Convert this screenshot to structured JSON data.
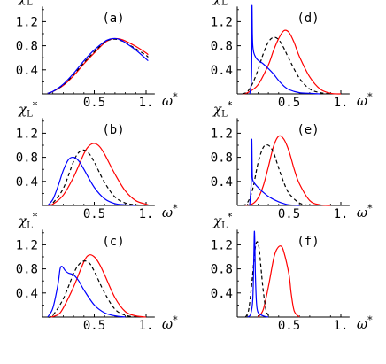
{
  "chart_data": [
    {
      "type": "line",
      "panel_label": "(a)",
      "ylabel": "χ_L*",
      "xlabel": "ω*",
      "xlim": [
        0,
        1.05
      ],
      "ylim": [
        0,
        1.45
      ],
      "xticks": [
        {
          "value": 0.5,
          "label": "0.5"
        },
        {
          "value": 1.0,
          "label": "1."
        }
      ],
      "yticks": [
        {
          "value": 0.4,
          "label": "0.4"
        },
        {
          "value": 0.8,
          "label": "0.8"
        },
        {
          "value": 1.2,
          "label": "1.2"
        }
      ],
      "series": [
        {
          "color": "#ff0000",
          "style": "solid",
          "x": [
            0.05,
            0.1,
            0.2,
            0.3,
            0.4,
            0.5,
            0.6,
            0.65,
            0.7,
            0.75,
            0.8,
            0.9,
            1.0,
            1.02
          ],
          "y": [
            0.01,
            0.04,
            0.14,
            0.3,
            0.5,
            0.68,
            0.85,
            0.9,
            0.92,
            0.91,
            0.88,
            0.79,
            0.68,
            0.65
          ]
        },
        {
          "color": "#000000",
          "style": "dashed",
          "x": [
            0.05,
            0.1,
            0.2,
            0.3,
            0.4,
            0.5,
            0.6,
            0.65,
            0.7,
            0.75,
            0.8,
            0.9,
            1.0,
            1.02
          ],
          "y": [
            0.01,
            0.04,
            0.15,
            0.32,
            0.52,
            0.7,
            0.86,
            0.9,
            0.91,
            0.89,
            0.85,
            0.75,
            0.64,
            0.61
          ]
        },
        {
          "color": "#0000ff",
          "style": "solid",
          "x": [
            0.05,
            0.1,
            0.2,
            0.3,
            0.4,
            0.5,
            0.6,
            0.65,
            0.7,
            0.75,
            0.8,
            0.9,
            1.0,
            1.02
          ],
          "y": [
            0.01,
            0.04,
            0.16,
            0.34,
            0.55,
            0.73,
            0.87,
            0.91,
            0.92,
            0.9,
            0.85,
            0.73,
            0.58,
            0.55
          ]
        }
      ]
    },
    {
      "type": "line",
      "panel_label": "(b)",
      "ylabel": "χ_L*",
      "xlabel": "ω*",
      "xlim": [
        0,
        1.05
      ],
      "ylim": [
        0,
        1.45
      ],
      "xticks": [
        {
          "value": 0.5,
          "label": "0.5"
        },
        {
          "value": 1.0,
          "label": "1."
        }
      ],
      "yticks": [
        {
          "value": 0.4,
          "label": "0.4"
        },
        {
          "value": 0.8,
          "label": "0.8"
        },
        {
          "value": 1.2,
          "label": "1.2"
        }
      ],
      "series": [
        {
          "color": "#ff0000",
          "style": "solid",
          "x": [
            0.05,
            0.1,
            0.2,
            0.3,
            0.4,
            0.45,
            0.5,
            0.55,
            0.6,
            0.7,
            0.8,
            0.9,
            1.0,
            1.02
          ],
          "y": [
            0.0,
            0.02,
            0.17,
            0.47,
            0.86,
            0.99,
            1.03,
            0.98,
            0.85,
            0.52,
            0.24,
            0.08,
            0.02,
            0.01
          ]
        },
        {
          "color": "#000000",
          "style": "dashed",
          "x": [
            0.05,
            0.1,
            0.2,
            0.3,
            0.35,
            0.4,
            0.45,
            0.5,
            0.6,
            0.7,
            0.8,
            0.9,
            1.0
          ],
          "y": [
            0.0,
            0.04,
            0.28,
            0.73,
            0.88,
            0.92,
            0.86,
            0.72,
            0.38,
            0.14,
            0.04,
            0.01,
            0.0
          ]
        },
        {
          "color": "#0000ff",
          "style": "solid",
          "x": [
            0.05,
            0.1,
            0.15,
            0.2,
            0.25,
            0.3,
            0.35,
            0.4,
            0.5,
            0.6,
            0.7,
            0.8,
            0.9
          ],
          "y": [
            0.0,
            0.1,
            0.32,
            0.58,
            0.76,
            0.8,
            0.74,
            0.6,
            0.3,
            0.11,
            0.03,
            0.01,
            0.0
          ]
        }
      ]
    },
    {
      "type": "line",
      "panel_label": "(c)",
      "ylabel": "χ_L*",
      "xlabel": "ω*",
      "xlim": [
        0,
        1.05
      ],
      "ylim": [
        0,
        1.45
      ],
      "xticks": [
        {
          "value": 0.5,
          "label": "0.5"
        },
        {
          "value": 1.0,
          "label": "1."
        }
      ],
      "yticks": [
        {
          "value": 0.4,
          "label": "0.4"
        },
        {
          "value": 0.8,
          "label": "0.8"
        },
        {
          "value": 1.2,
          "label": "1.2"
        }
      ],
      "series": [
        {
          "color": "#ff0000",
          "style": "solid",
          "x": [
            0.08,
            0.15,
            0.2,
            0.3,
            0.4,
            0.45,
            0.5,
            0.55,
            0.6,
            0.7,
            0.8,
            0.9,
            1.0
          ],
          "y": [
            0.0,
            0.04,
            0.15,
            0.5,
            0.92,
            1.03,
            1.0,
            0.88,
            0.7,
            0.32,
            0.09,
            0.02,
            0.0
          ]
        },
        {
          "color": "#000000",
          "style": "dashed",
          "x": [
            0.05,
            0.1,
            0.2,
            0.3,
            0.35,
            0.4,
            0.45,
            0.5,
            0.6,
            0.7,
            0.8,
            0.9
          ],
          "y": [
            0.0,
            0.03,
            0.3,
            0.72,
            0.87,
            0.93,
            0.9,
            0.76,
            0.4,
            0.13,
            0.03,
            0.0
          ]
        },
        {
          "color": "#0000ff",
          "style": "solid",
          "x": [
            0.05,
            0.1,
            0.15,
            0.17,
            0.19,
            0.22,
            0.25,
            0.3,
            0.35,
            0.4,
            0.5,
            0.6,
            0.7,
            0.8
          ],
          "y": [
            0.0,
            0.15,
            0.55,
            0.8,
            0.84,
            0.77,
            0.73,
            0.7,
            0.6,
            0.45,
            0.2,
            0.07,
            0.02,
            0.0
          ]
        }
      ]
    },
    {
      "type": "line",
      "panel_label": "(d)",
      "ylabel": "χ_L*",
      "xlabel": "ω*",
      "xlim": [
        0,
        1.05
      ],
      "ylim": [
        0,
        1.45
      ],
      "xticks": [
        {
          "value": 0.5,
          "label": "0.5"
        },
        {
          "value": 1.0,
          "label": "1."
        }
      ],
      "yticks": [
        {
          "value": 0.4,
          "label": "0.4"
        },
        {
          "value": 0.8,
          "label": "0.8"
        },
        {
          "value": 1.2,
          "label": "1.2"
        }
      ],
      "series": [
        {
          "color": "#ff0000",
          "style": "solid",
          "x": [
            0.05,
            0.1,
            0.2,
            0.3,
            0.35,
            0.4,
            0.45,
            0.5,
            0.55,
            0.6,
            0.7,
            0.8,
            0.9,
            1.0
          ],
          "y": [
            0.0,
            0.02,
            0.15,
            0.48,
            0.72,
            0.92,
            1.05,
            1.02,
            0.85,
            0.62,
            0.28,
            0.08,
            0.01,
            0.0
          ]
        },
        {
          "color": "#000000",
          "style": "dashed",
          "x": [
            0.05,
            0.1,
            0.15,
            0.2,
            0.25,
            0.3,
            0.35,
            0.4,
            0.45,
            0.5,
            0.6,
            0.7,
            0.8,
            0.9
          ],
          "y": [
            0.0,
            0.04,
            0.18,
            0.4,
            0.66,
            0.86,
            0.94,
            0.9,
            0.76,
            0.58,
            0.26,
            0.08,
            0.02,
            0.0
          ]
        },
        {
          "color": "#0000ff",
          "style": "solid",
          "x": [
            0.12,
            0.138,
            0.142,
            0.146,
            0.15,
            0.16,
            0.18,
            0.2,
            0.25,
            0.3,
            0.35,
            0.4,
            0.45,
            0.5,
            0.6,
            0.7,
            0.8
          ],
          "y": [
            0.0,
            0.3,
            1.45,
            1.0,
            0.8,
            0.68,
            0.6,
            0.56,
            0.5,
            0.42,
            0.33,
            0.22,
            0.13,
            0.07,
            0.02,
            0.01,
            0.0
          ]
        }
      ]
    },
    {
      "type": "line",
      "panel_label": "(e)",
      "ylabel": "χ_L*",
      "xlabel": "ω*",
      "xlim": [
        0,
        1.05
      ],
      "ylim": [
        0,
        1.45
      ],
      "xticks": [
        {
          "value": 0.5,
          "label": "0.5"
        },
        {
          "value": 1.0,
          "label": "1."
        }
      ],
      "yticks": [
        {
          "value": 0.4,
          "label": "0.4"
        },
        {
          "value": 0.8,
          "label": "0.8"
        },
        {
          "value": 1.2,
          "label": "1.2"
        }
      ],
      "series": [
        {
          "color": "#ff0000",
          "style": "solid",
          "x": [
            0.08,
            0.15,
            0.2,
            0.25,
            0.3,
            0.35,
            0.4,
            0.45,
            0.5,
            0.55,
            0.6,
            0.7,
            0.8,
            0.9
          ],
          "y": [
            0.0,
            0.03,
            0.12,
            0.32,
            0.64,
            0.98,
            1.15,
            1.1,
            0.9,
            0.6,
            0.36,
            0.08,
            0.01,
            0.0
          ]
        },
        {
          "color": "#000000",
          "style": "dashed",
          "x": [
            0.05,
            0.1,
            0.15,
            0.2,
            0.25,
            0.3,
            0.35,
            0.4,
            0.45,
            0.5,
            0.6,
            0.7
          ],
          "y": [
            0.0,
            0.05,
            0.28,
            0.7,
            0.96,
            1.0,
            0.88,
            0.62,
            0.38,
            0.2,
            0.04,
            0.0
          ]
        },
        {
          "color": "#0000ff",
          "style": "solid",
          "x": [
            0.12,
            0.135,
            0.14,
            0.145,
            0.15,
            0.17,
            0.2,
            0.25,
            0.3,
            0.35,
            0.4,
            0.45,
            0.5,
            0.6
          ],
          "y": [
            0.0,
            0.4,
            1.1,
            0.55,
            0.42,
            0.36,
            0.3,
            0.22,
            0.15,
            0.1,
            0.06,
            0.03,
            0.01,
            0.0
          ]
        }
      ]
    },
    {
      "type": "line",
      "panel_label": "(f)",
      "ylabel": "χ_L*",
      "xlabel": "ω*",
      "xlim": [
        0,
        1.05
      ],
      "ylim": [
        0,
        1.45
      ],
      "xticks": [
        {
          "value": 0.5,
          "label": "0.5"
        },
        {
          "value": 1.0,
          "label": "1."
        }
      ],
      "yticks": [
        {
          "value": 0.4,
          "label": "0.4"
        },
        {
          "value": 0.8,
          "label": "0.8"
        },
        {
          "value": 1.2,
          "label": "1.2"
        }
      ],
      "series": [
        {
          "color": "#ff0000",
          "style": "solid",
          "x": [
            0.2,
            0.25,
            0.3,
            0.35,
            0.38,
            0.42,
            0.45,
            0.5,
            0.52,
            0.55,
            0.6
          ],
          "y": [
            0.0,
            0.12,
            0.5,
            0.96,
            1.12,
            1.18,
            1.08,
            0.7,
            0.4,
            0.1,
            0.0
          ]
        },
        {
          "color": "#000000",
          "style": "dashed",
          "x": [
            0.08,
            0.11,
            0.14,
            0.17,
            0.19,
            0.21,
            0.23,
            0.25,
            0.28,
            0.32
          ],
          "y": [
            0.0,
            0.12,
            0.55,
            1.1,
            1.25,
            1.15,
            0.8,
            0.45,
            0.1,
            0.0
          ]
        },
        {
          "color": "#0000ff",
          "style": "solid",
          "x": [
            0.1,
            0.13,
            0.15,
            0.16,
            0.165,
            0.17,
            0.175,
            0.185,
            0.2,
            0.25,
            0.3
          ],
          "y": [
            0.0,
            0.05,
            0.3,
            1.0,
            1.42,
            1.2,
            0.7,
            0.25,
            0.08,
            0.02,
            0.0
          ]
        }
      ]
    }
  ]
}
